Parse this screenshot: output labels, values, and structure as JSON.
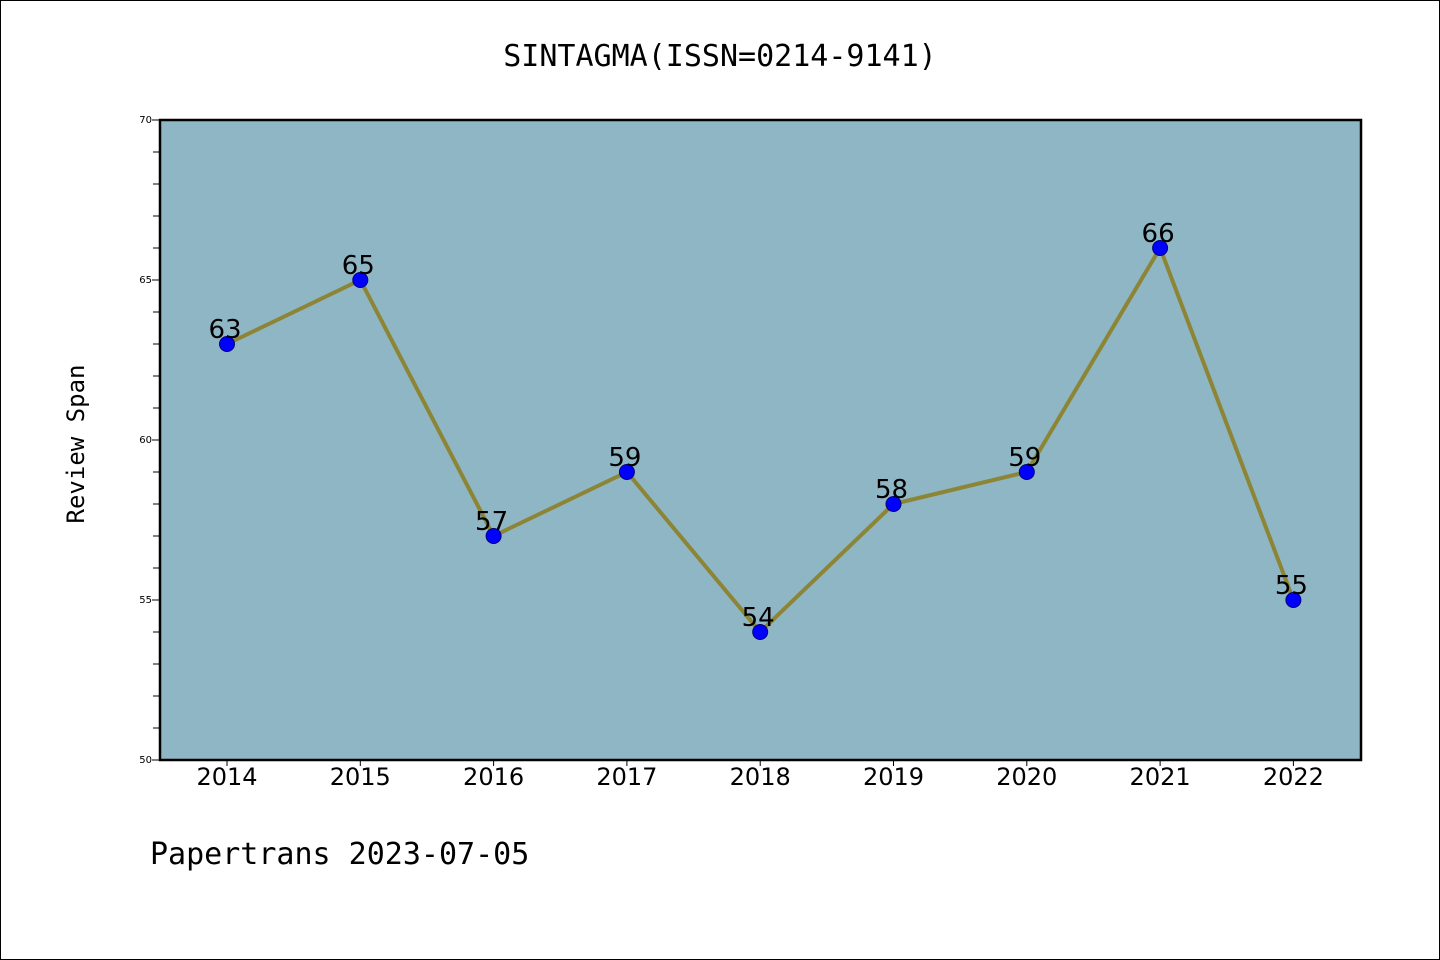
{
  "chart_data": {
    "type": "line",
    "title": "SINTAGMA(ISSN=0214-9141)",
    "xlabel": "",
    "ylabel": "Review Span",
    "x": [
      "2014",
      "2015",
      "2016",
      "2017",
      "2018",
      "2019",
      "2020",
      "2021",
      "2022"
    ],
    "series": [
      {
        "values": [
          63,
          65,
          57,
          59,
          54,
          58,
          59,
          66,
          55
        ]
      }
    ],
    "data_labels": [
      "63",
      "65",
      "57",
      "59",
      "54",
      "58",
      "59",
      "66",
      "55"
    ],
    "ylim": [
      50,
      70
    ],
    "yticks": [
      "50",
      "55",
      "60",
      "65",
      "70"
    ],
    "grid": false,
    "colors": {
      "plot_background": "#8fb6c4",
      "line": "#8c8535",
      "marker": "#0000ff"
    }
  },
  "footer": "Papertrans 2023-07-05"
}
